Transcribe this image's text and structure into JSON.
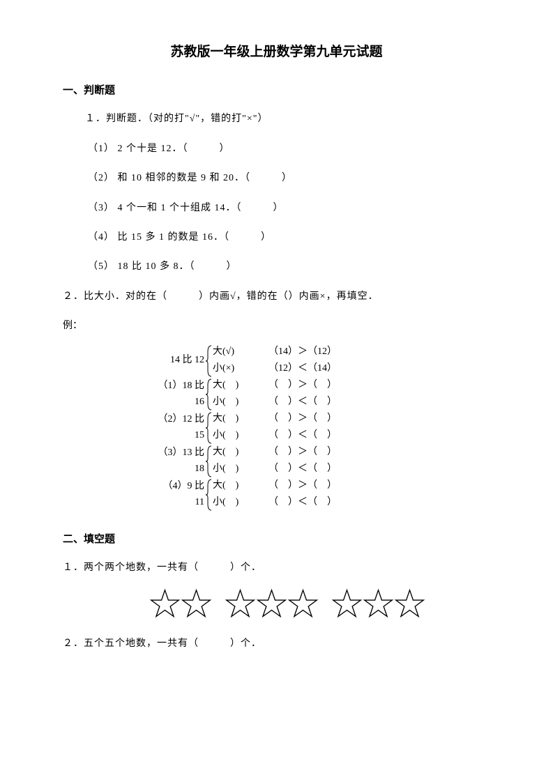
{
  "title": "苏教版一年级上册数学第九单元试题",
  "section1": {
    "header": "一、判断题",
    "q1": {
      "text": "１．判断题．（对的打\"√\"，错的打\"×\"）",
      "items": [
        "（1） 2 个十是 12．（　　　）",
        "（2） 和 10 相邻的数是 9 和 20．（　　　）",
        "（3） 4 个一和 1 个十组成 14．（　　　）",
        "（4） 比 15 多 1 的数是 16．（　　　）",
        "（5） 18 比 10 多 8．（　　　）"
      ]
    },
    "q2": {
      "text": "２．比大小．对的在（　　　）内画√，错的在（）内画×，再填空．",
      "example": "例：",
      "rows": [
        {
          "left": "14 比 12",
          "topMid": "大(√)",
          "botMid": "小(×)",
          "topRight": "（14）＞（12）",
          "botRight": "（12）＜（14）"
        },
        {
          "left": "（1）18 比 16",
          "topMid": "大(　)",
          "botMid": "小(　)",
          "topRight": "（　）＞（　）",
          "botRight": "（　）＜（　）"
        },
        {
          "left": "（2）12 比 15",
          "topMid": "大(　)",
          "botMid": "小(　)",
          "topRight": "（　）＞（　）",
          "botRight": "（　）＜（　）"
        },
        {
          "left": "（3）13 比 18",
          "topMid": "大(　)",
          "botMid": "小(　)",
          "topRight": "（　）＞（　）",
          "botRight": "（　）＜（　）"
        },
        {
          "left": "（4）9 比 11",
          "topMid": "大(　)",
          "botMid": "小(　)",
          "topRight": "（　）＞（　）",
          "botRight": "（　）＜（　）"
        }
      ]
    }
  },
  "section2": {
    "header": "二、填空题",
    "q1": "１．两个两个地数，一共有（　　　）个．",
    "q2": "２．五个五个地数，一共有（　　　）个．",
    "starGroups": [
      2,
      3,
      3
    ],
    "starCount": 8
  },
  "colors": {
    "background": "#ffffff",
    "text": "#000000"
  }
}
